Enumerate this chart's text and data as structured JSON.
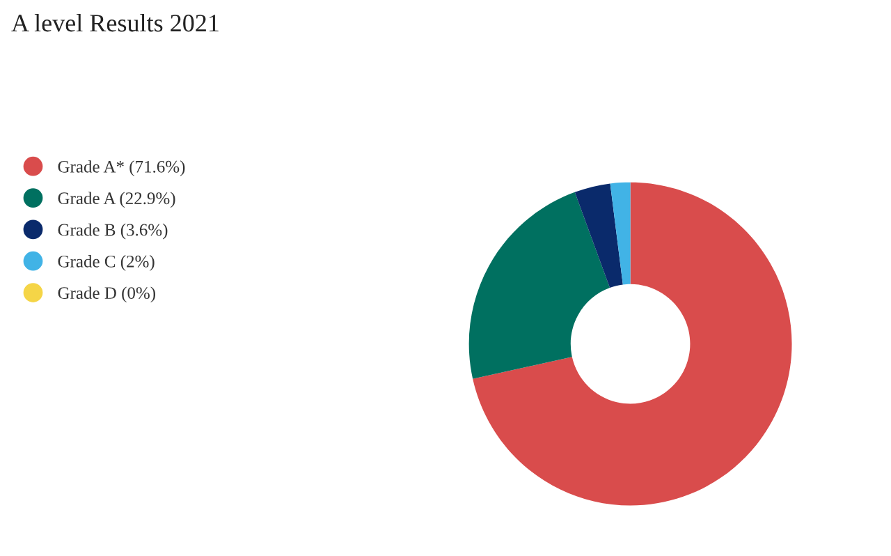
{
  "chart_data": {
    "type": "donut",
    "title": "A level Results 2021",
    "categories": [
      "Grade A* (71.6%)",
      "Grade A (22.9%)",
      "Grade B (3.6%)",
      "Grade C (2%)",
      "Grade D (0%)"
    ],
    "values": [
      71.6,
      22.9,
      3.6,
      2,
      0
    ],
    "colors": [
      "#d94c4c",
      "#007060",
      "#0a2a6b",
      "#41b3e6",
      "#f5d547"
    ],
    "legend": "left"
  }
}
